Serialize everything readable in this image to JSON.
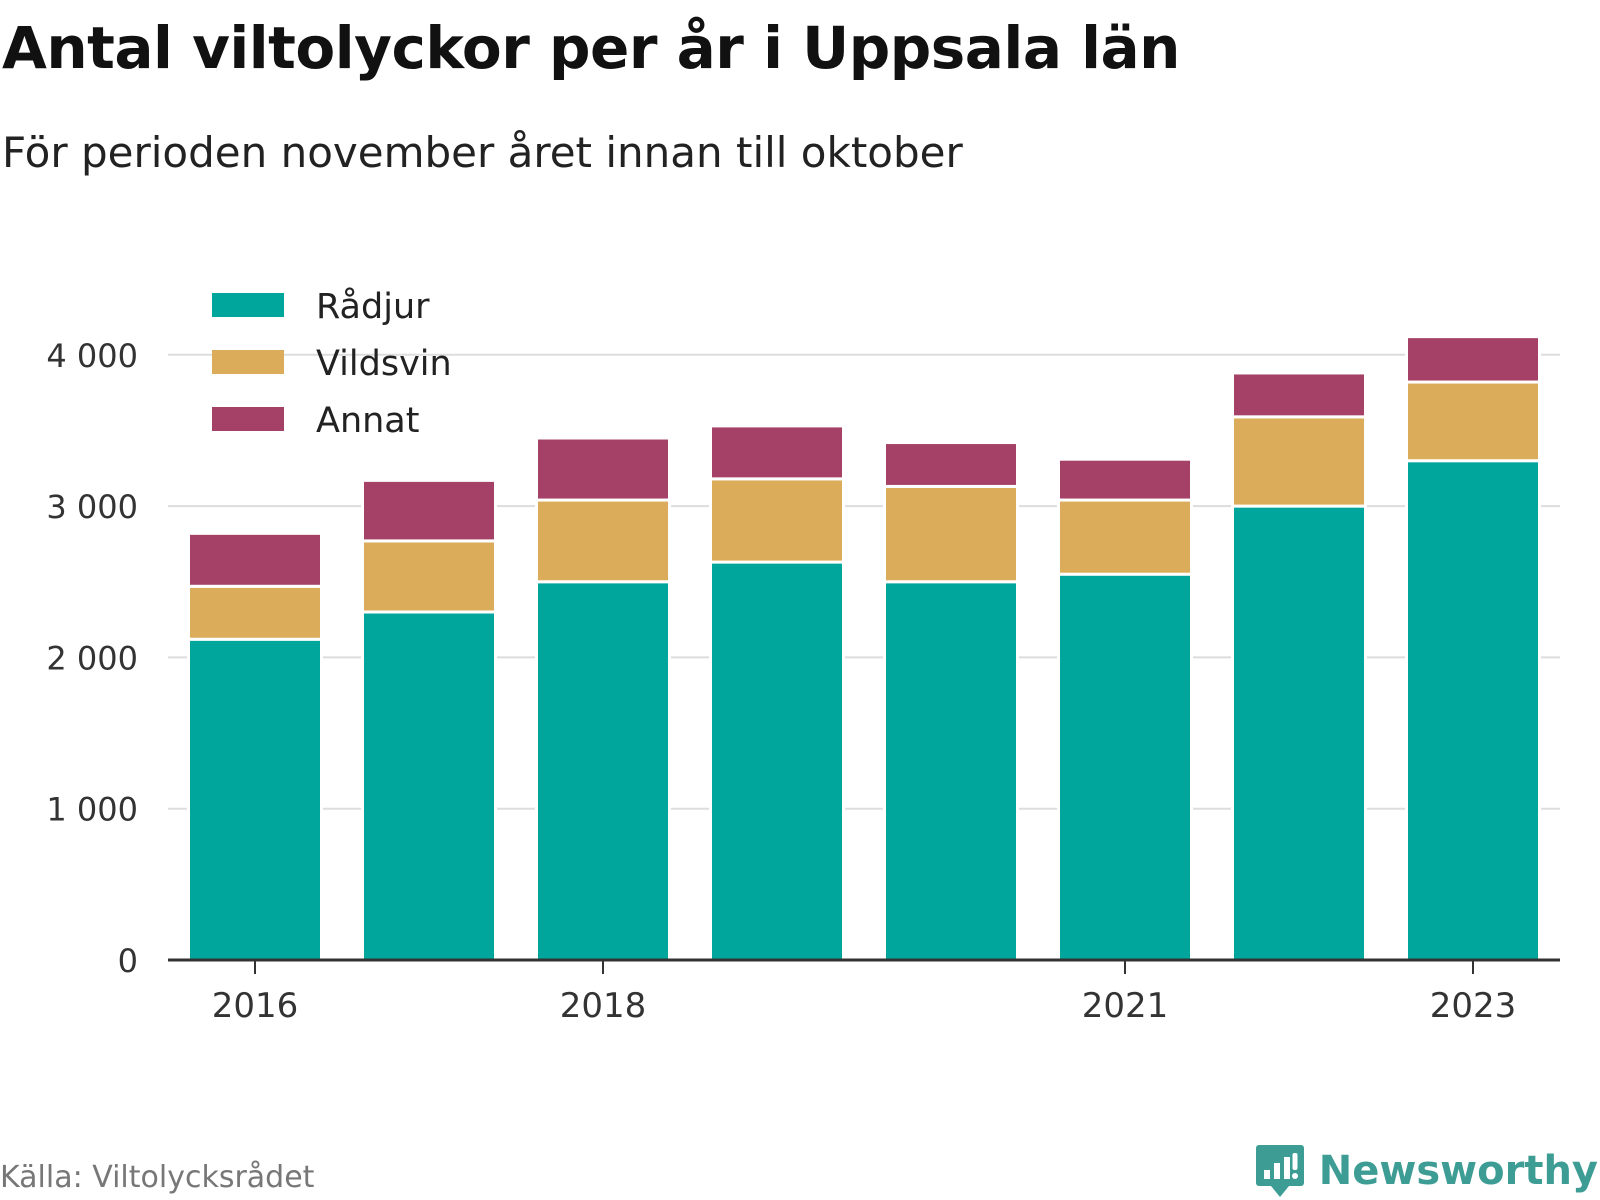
{
  "title": "Antal viltolyckor per år i Uppsala län",
  "subtitle": "För perioden november året innan till oktober",
  "source": "Källa: Viltolycksrådet",
  "brand": {
    "name": "Newsworthy",
    "icon": "bar-chart-speech-bubble-icon",
    "color": "#3d9c94"
  },
  "chart_data": {
    "type": "bar",
    "stacked": true,
    "categories": [
      "2016",
      "2017",
      "2018",
      "2019",
      "2020",
      "2021",
      "2022",
      "2023"
    ],
    "x_tick_labels": [
      "2016",
      "2018",
      "2021",
      "2023"
    ],
    "y_ticks": [
      0,
      1000,
      2000,
      3000,
      4000
    ],
    "y_tick_labels": [
      "0",
      "1 000",
      "2 000",
      "3 000",
      "4 000"
    ],
    "ylim": [
      0,
      4200
    ],
    "grid": true,
    "legend_position": "top-left",
    "series": [
      {
        "name": "Rådjur",
        "color": "#00a59b",
        "values": [
          2120,
          2300,
          2500,
          2630,
          2500,
          2550,
          3000,
          3300
        ]
      },
      {
        "name": "Vildsvin",
        "color": "#dbad5b",
        "values": [
          350,
          470,
          540,
          550,
          630,
          490,
          590,
          520
        ]
      },
      {
        "name": "Annat",
        "color": "#a54166",
        "values": [
          350,
          400,
          410,
          350,
          290,
          270,
          290,
          300
        ]
      }
    ]
  }
}
